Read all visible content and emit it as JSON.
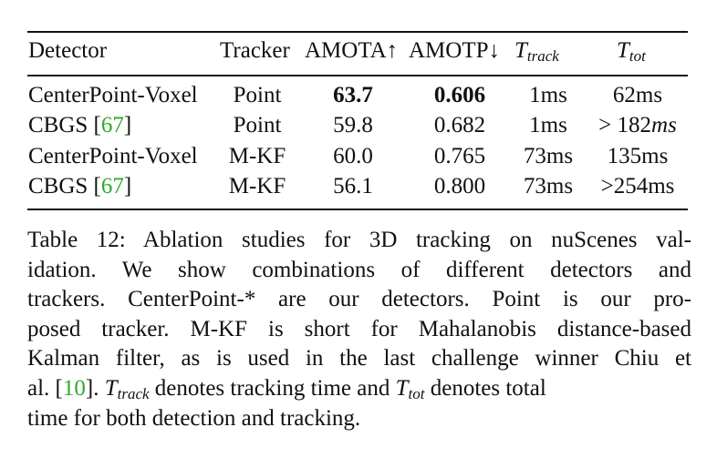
{
  "table": {
    "headers": {
      "detector": "Detector",
      "tracker": "Tracker",
      "amota": "AMOTA↑",
      "amotp": "AMOTP↓",
      "t_track_base": "T",
      "t_track_sub": "track",
      "t_tot_base": "T",
      "t_tot_sub": "tot"
    },
    "rows": [
      {
        "detector": "CenterPoint-Voxel",
        "cite": "",
        "tracker": "Point",
        "amota": "63.7",
        "amotp": "0.606",
        "t_track": "1ms",
        "t_tot": "62ms"
      },
      {
        "detector": "CBGS [",
        "cite": "67",
        "cite_close": "]",
        "tracker": "Point",
        "amota": "59.8",
        "amotp": "0.682",
        "t_track": "1ms",
        "t_tot_prefix": "> 182",
        "t_tot_unit": "ms"
      },
      {
        "detector": "CenterPoint-Voxel",
        "cite": "",
        "tracker": "M-KF",
        "amota": "60.0",
        "amotp": "0.765",
        "t_track": "73ms",
        "t_tot": "135ms"
      },
      {
        "detector": "CBGS [",
        "cite": "67",
        "cite_close": "]",
        "tracker": "M-KF",
        "amota": "56.1",
        "amotp": "0.800",
        "t_track": "73ms",
        "t_tot": ">254ms"
      }
    ]
  },
  "caption": {
    "line1": "Table 12: Ablation studies for 3D tracking on nuScenes val-",
    "line2": "idation. We show combinations of different detectors and",
    "line3": "trackers. CenterPoint-* are our detectors. Point is our pro-",
    "line4": "posed tracker. M-KF is short for Mahalanobis distance-based",
    "line5": "Kalman filter, as is used in the last challenge winner Chiu et",
    "line6_a": "al. [",
    "line6_cite": "10",
    "line6_b": "]. ",
    "line6_c": " denotes tracking time and ",
    "line6_d": " denotes total",
    "line7": "time for both detection and tracking."
  }
}
